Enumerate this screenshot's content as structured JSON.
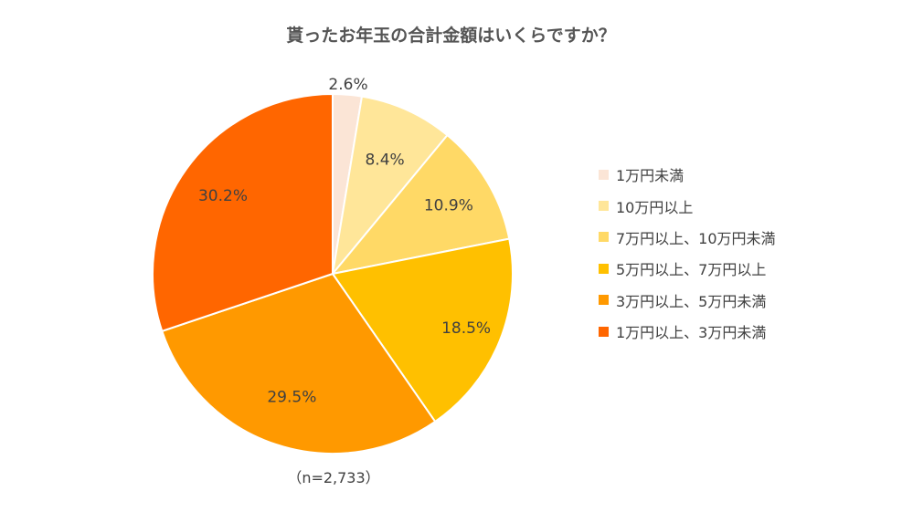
{
  "chart_data": {
    "type": "pie",
    "title": "貰ったお年玉の合計金額はいくらですか？",
    "note": "（n=2,733）",
    "categories": [
      "1万円未満",
      "10万円以上",
      "7万円以上、10万円未満",
      "5万円以上、7万円以上",
      "3万円以上、5万円未満",
      "1万円以上、3万円未満"
    ],
    "values": [
      2.6,
      8.4,
      10.9,
      18.5,
      29.5,
      30.2
    ],
    "value_labels": [
      "2.6%",
      "8.4%",
      "10.9%",
      "18.5%",
      "29.5%",
      "30.2%"
    ],
    "colors": [
      "#fbe5d6",
      "#ffe699",
      "#ffd966",
      "#ffc000",
      "#ff9900",
      "#ff6600"
    ],
    "start": "12 o'clock",
    "direction": "clockwise",
    "legend_position": "right"
  }
}
